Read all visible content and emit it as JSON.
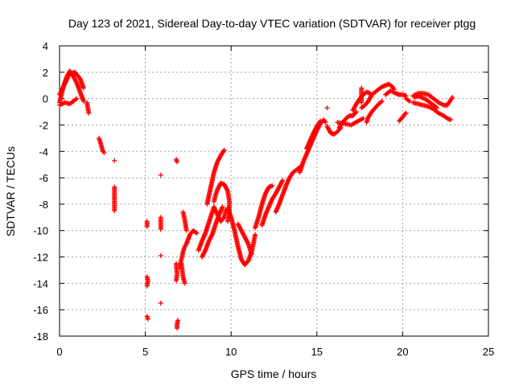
{
  "chart_data": {
    "type": "scatter",
    "title": "Day 123 of 2021, Sidereal Day-to-day VTEC variation (SDTVAR) for receiver ptgg",
    "xlabel": "GPS time / hours",
    "ylabel": "SDTVAR / TECUs",
    "xlim": [
      0,
      25
    ],
    "ylim": [
      -18,
      4
    ],
    "xticks": [
      0,
      5,
      10,
      15,
      20,
      25
    ],
    "yticks": [
      -18,
      -16,
      -14,
      -12,
      -10,
      -8,
      -6,
      -4,
      -2,
      0,
      2,
      4
    ],
    "grid": true,
    "marker": "+",
    "color": "#ff0000",
    "segments": [
      {
        "name": "a",
        "points": [
          [
            0.0,
            -0.3
          ],
          [
            0.2,
            0.8
          ],
          [
            0.4,
            1.6
          ],
          [
            0.6,
            2.1
          ],
          [
            0.8,
            1.7
          ],
          [
            1.0,
            1.2
          ],
          [
            1.2,
            0.5
          ],
          [
            1.4,
            -0.2
          ]
        ]
      },
      {
        "name": "b",
        "points": [
          [
            0.0,
            0.3
          ],
          [
            0.3,
            1.1
          ],
          [
            0.6,
            1.9
          ],
          [
            0.9,
            2.0
          ],
          [
            1.2,
            1.5
          ],
          [
            1.4,
            0.8
          ]
        ]
      },
      {
        "name": "c",
        "points": [
          [
            0.0,
            -0.5
          ],
          [
            0.3,
            -0.3
          ],
          [
            0.6,
            -0.4
          ],
          [
            0.8,
            -0.2
          ],
          [
            1.0,
            0.0
          ]
        ]
      },
      {
        "name": "d",
        "points": [
          [
            1.6,
            -0.3
          ],
          [
            1.7,
            -1.1
          ]
        ]
      },
      {
        "name": "e",
        "points": [
          [
            2.3,
            -3.0
          ],
          [
            2.4,
            -3.4
          ],
          [
            2.5,
            -3.9
          ],
          [
            2.6,
            -4.1
          ]
        ]
      },
      {
        "name": "f",
        "points": [
          [
            3.2,
            -4.7
          ],
          [
            3.2,
            -6.7
          ],
          [
            3.2,
            -7.3
          ],
          [
            3.2,
            -8.5
          ]
        ]
      },
      {
        "name": "g",
        "points": [
          [
            5.1,
            -9.3
          ],
          [
            5.1,
            -9.7
          ],
          [
            5.1,
            -13.5
          ],
          [
            5.15,
            -13.8
          ],
          [
            5.1,
            -14.2
          ],
          [
            5.1,
            -16.5
          ],
          [
            5.15,
            -16.7
          ]
        ]
      },
      {
        "name": "h",
        "points": [
          [
            5.9,
            -5.8
          ],
          [
            5.9,
            -9.0
          ],
          [
            5.9,
            -9.9
          ],
          [
            5.9,
            -11.9
          ],
          [
            5.9,
            -15.5
          ]
        ]
      },
      {
        "name": "i",
        "points": [
          [
            6.8,
            -4.6
          ],
          [
            6.85,
            -4.8
          ],
          [
            6.8,
            -12.5
          ],
          [
            6.85,
            -13.3
          ],
          [
            6.8,
            -13.8
          ],
          [
            6.9,
            -16.8
          ],
          [
            6.85,
            -17.1
          ],
          [
            6.85,
            -17.4
          ]
        ]
      },
      {
        "name": "j",
        "points": [
          [
            7.0,
            -12.8
          ],
          [
            7.1,
            -12.2
          ],
          [
            7.2,
            -11.6
          ],
          [
            7.3,
            -11.2
          ],
          [
            7.4,
            -11.0
          ],
          [
            7.6,
            -10.3
          ],
          [
            7.8,
            -10.0
          ],
          [
            8.0,
            -10.2
          ]
        ]
      },
      {
        "name": "k",
        "points": [
          [
            7.1,
            -12.5
          ],
          [
            7.2,
            -13.5
          ],
          [
            7.3,
            -14.0
          ]
        ]
      },
      {
        "name": "l",
        "points": [
          [
            7.2,
            -8.6
          ],
          [
            7.3,
            -9.2
          ],
          [
            7.4,
            -10.0
          ]
        ]
      },
      {
        "name": "m",
        "points": [
          [
            8.1,
            -11.5
          ],
          [
            8.3,
            -10.8
          ],
          [
            8.5,
            -10.2
          ],
          [
            8.7,
            -9.4
          ],
          [
            8.9,
            -8.6
          ],
          [
            9.0,
            -8.2
          ],
          [
            9.2,
            -8.8
          ],
          [
            9.4,
            -9.3
          ],
          [
            9.6,
            -9.0
          ],
          [
            9.7,
            -8.4
          ]
        ]
      },
      {
        "name": "n",
        "points": [
          [
            8.3,
            -12.0
          ],
          [
            8.5,
            -11.5
          ],
          [
            8.7,
            -10.8
          ],
          [
            8.9,
            -10.3
          ],
          [
            9.1,
            -9.5
          ],
          [
            9.3,
            -8.8
          ],
          [
            9.5,
            -8.2
          ]
        ]
      },
      {
        "name": "o",
        "points": [
          [
            8.6,
            -8.0
          ],
          [
            8.8,
            -6.8
          ],
          [
            9.0,
            -5.6
          ],
          [
            9.2,
            -4.8
          ],
          [
            9.4,
            -4.3
          ],
          [
            9.6,
            -3.9
          ]
        ]
      },
      {
        "name": "p",
        "points": [
          [
            9.0,
            -7.8
          ],
          [
            9.1,
            -7.3
          ],
          [
            9.2,
            -6.9
          ],
          [
            9.4,
            -6.4
          ],
          [
            9.6,
            -6.5
          ],
          [
            9.8,
            -7.0
          ],
          [
            9.9,
            -7.8
          ],
          [
            9.9,
            -8.8
          ],
          [
            9.8,
            -9.3
          ]
        ]
      },
      {
        "name": "q",
        "points": [
          [
            9.8,
            -8.3
          ],
          [
            10.0,
            -9.0
          ],
          [
            10.2,
            -10.0
          ],
          [
            10.4,
            -11.2
          ],
          [
            10.6,
            -12.2
          ],
          [
            10.8,
            -12.6
          ],
          [
            11.0,
            -12.3
          ],
          [
            11.2,
            -11.6
          ],
          [
            11.3,
            -11.0
          ],
          [
            11.4,
            -10.3
          ]
        ]
      },
      {
        "name": "r",
        "points": [
          [
            10.4,
            -9.5
          ],
          [
            10.6,
            -10.0
          ],
          [
            10.8,
            -10.5
          ],
          [
            11.0,
            -11.0
          ],
          [
            11.2,
            -11.8
          ]
        ]
      },
      {
        "name": "s",
        "points": [
          [
            11.4,
            -9.8
          ],
          [
            11.6,
            -9.0
          ],
          [
            11.8,
            -8.0
          ],
          [
            12.0,
            -7.2
          ],
          [
            12.2,
            -6.7
          ],
          [
            12.4,
            -6.6
          ]
        ]
      },
      {
        "name": "t",
        "points": [
          [
            11.8,
            -9.6
          ],
          [
            12.0,
            -8.8
          ],
          [
            12.2,
            -8.2
          ],
          [
            12.4,
            -7.6
          ],
          [
            12.6,
            -7.2
          ],
          [
            12.8,
            -6.7
          ],
          [
            13.0,
            -6.2
          ]
        ]
      },
      {
        "name": "u",
        "points": [
          [
            12.6,
            -8.6
          ],
          [
            12.8,
            -8.0
          ],
          [
            13.0,
            -7.3
          ],
          [
            13.2,
            -6.6
          ],
          [
            13.4,
            -6.0
          ],
          [
            13.6,
            -5.6
          ],
          [
            13.8,
            -5.4
          ],
          [
            14.0,
            -5.2
          ]
        ]
      },
      {
        "name": "v",
        "points": [
          [
            14.0,
            -5.6
          ],
          [
            14.2,
            -4.8
          ],
          [
            14.4,
            -4.2
          ],
          [
            14.6,
            -3.6
          ],
          [
            14.8,
            -3.0
          ],
          [
            15.0,
            -2.4
          ],
          [
            15.2,
            -1.9
          ],
          [
            15.4,
            -1.6
          ],
          [
            15.5,
            -1.8
          ]
        ]
      },
      {
        "name": "w",
        "points": [
          [
            14.4,
            -3.8
          ],
          [
            14.6,
            -3.2
          ],
          [
            14.8,
            -2.6
          ],
          [
            15.0,
            -2.1
          ],
          [
            15.2,
            -1.7
          ]
        ]
      },
      {
        "name": "x",
        "points": [
          [
            15.6,
            -0.7
          ]
        ]
      },
      {
        "name": "y",
        "points": [
          [
            15.6,
            -2.1
          ],
          [
            15.8,
            -2.6
          ],
          [
            16.0,
            -2.7
          ],
          [
            16.2,
            -2.5
          ],
          [
            16.4,
            -2.2
          ]
        ]
      },
      {
        "name": "z",
        "points": [
          [
            16.3,
            -2.2
          ],
          [
            16.5,
            -1.8
          ],
          [
            16.7,
            -1.5
          ],
          [
            16.9,
            -1.3
          ],
          [
            17.1,
            -1.3
          ],
          [
            17.3,
            -1.0
          ]
        ]
      },
      {
        "name": "aa",
        "points": [
          [
            16.2,
            -1.8
          ],
          [
            16.6,
            -1.9
          ],
          [
            17.0,
            -2.0
          ],
          [
            17.4,
            -1.7
          ],
          [
            17.7,
            -1.5
          ]
        ]
      },
      {
        "name": "ab",
        "points": [
          [
            17.1,
            -0.9
          ],
          [
            17.3,
            -0.4
          ],
          [
            17.5,
            0.0
          ],
          [
            17.7,
            0.3
          ],
          [
            17.9,
            0.5
          ],
          [
            18.1,
            0.4
          ]
        ]
      },
      {
        "name": "ac",
        "points": [
          [
            17.6,
            -0.7
          ],
          [
            17.8,
            -0.5
          ],
          [
            18.0,
            -0.2
          ],
          [
            18.2,
            0.3
          ],
          [
            18.4,
            0.5
          ],
          [
            18.6,
            0.7
          ],
          [
            18.8,
            0.9
          ],
          [
            19.0,
            1.0
          ],
          [
            19.2,
            1.1
          ],
          [
            19.4,
            0.9
          ],
          [
            19.5,
            0.7
          ]
        ]
      },
      {
        "name": "ad",
        "points": [
          [
            17.6,
            0.8
          ],
          [
            17.6,
            -0.3
          ]
        ]
      },
      {
        "name": "ae",
        "points": [
          [
            17.9,
            -1.8
          ],
          [
            18.0,
            -1.4
          ],
          [
            18.2,
            -1.0
          ],
          [
            18.4,
            -0.7
          ],
          [
            18.6,
            -0.4
          ],
          [
            18.8,
            -0.2
          ]
        ]
      },
      {
        "name": "af",
        "points": [
          [
            19.0,
            0.3
          ],
          [
            19.3,
            0.6
          ],
          [
            19.6,
            0.4
          ],
          [
            19.8,
            0.3
          ],
          [
            20.0,
            0.3
          ],
          [
            20.2,
            0.2
          ]
        ]
      },
      {
        "name": "ag",
        "points": [
          [
            19.8,
            -1.7
          ],
          [
            20.0,
            -1.4
          ],
          [
            20.1,
            -1.2
          ],
          [
            20.2,
            -1.1
          ]
        ]
      },
      {
        "name": "ah",
        "points": [
          [
            20.2,
            0.0
          ],
          [
            20.4,
            -0.2
          ]
        ]
      },
      {
        "name": "ai",
        "points": [
          [
            20.6,
            0.2
          ],
          [
            20.9,
            0.4
          ],
          [
            21.2,
            0.4
          ],
          [
            21.5,
            0.3
          ],
          [
            21.8,
            0.0
          ],
          [
            22.1,
            -0.3
          ],
          [
            22.4,
            -0.5
          ],
          [
            22.6,
            -0.5
          ],
          [
            22.7,
            -0.3
          ],
          [
            22.8,
            -0.1
          ],
          [
            22.9,
            0.1
          ]
        ]
      },
      {
        "name": "aj",
        "points": [
          [
            20.6,
            -0.3
          ],
          [
            20.9,
            -0.4
          ],
          [
            21.2,
            -0.5
          ],
          [
            21.5,
            -0.6
          ],
          [
            21.8,
            -0.8
          ],
          [
            22.1,
            -1.1
          ],
          [
            22.4,
            -1.3
          ],
          [
            22.6,
            -1.5
          ],
          [
            22.8,
            -1.6
          ]
        ]
      },
      {
        "name": "ak",
        "points": [
          [
            20.7,
            0.1
          ],
          [
            20.9,
            0.2
          ],
          [
            21.1,
            0.1
          ],
          [
            21.4,
            -0.1
          ],
          [
            21.7,
            -0.4
          ],
          [
            22.0,
            -0.7
          ]
        ]
      }
    ]
  }
}
